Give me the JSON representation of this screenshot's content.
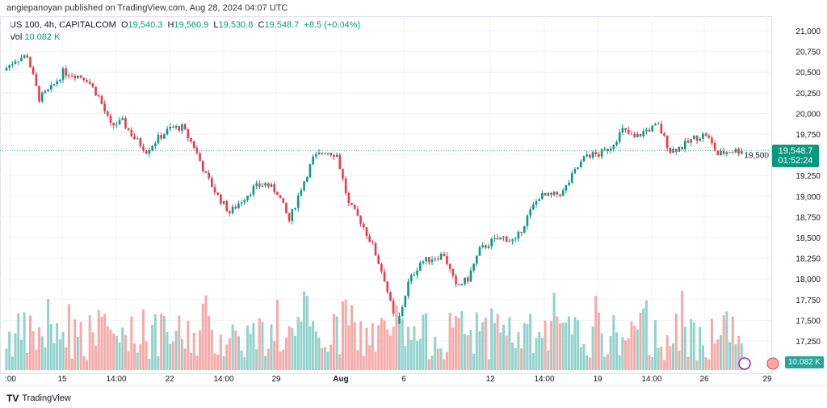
{
  "header": {
    "published": "angiepanoyan published on TradingView.com, Aug 28, 2024 04:07 UTC"
  },
  "legend": {
    "symbol": "US 100, 4h, CAPITALCOM",
    "o_label": "O",
    "o": "19,540.3",
    "h_label": "H",
    "h": "19,560.9",
    "l_label": "L",
    "l": "19,530.8",
    "c_label": "C",
    "c": "19,548.7",
    "change": "+8.5 (+0.04%)",
    "vol_label": "Vol",
    "vol": "10.082 K"
  },
  "price_tag": {
    "price": "19,548.7",
    "countdown": "01:52:24"
  },
  "vol_tag": "10.082 K",
  "brand": "TradingView",
  "colors": {
    "up": "#089981",
    "down": "#f23645",
    "vol_up": "#92d2cc",
    "vol_down": "#f7a9a7"
  },
  "chart_data": {
    "type": "candlestick",
    "title": "US 100, 4h, CAPITALCOM",
    "y_ticks": [
      "21,000",
      "20,750",
      "20,500",
      "20,250",
      "20,000",
      "19,750",
      "19,500",
      "19,250",
      "19,000",
      "18,750",
      "18,500",
      "18,250",
      "18,000",
      "17,750",
      "17,500",
      "17,250"
    ],
    "ylim": [
      17250,
      21000
    ],
    "x_ticks": [
      ":00",
      "15",
      "14:00",
      "22",
      "14:00",
      "29",
      "Aug",
      "6",
      "12",
      "14:00",
      "19",
      "14:00",
      "26",
      "29"
    ],
    "last_price": 19548.7,
    "approx_closes": [
      20520,
      20650,
      20700,
      20180,
      20300,
      20500,
      20470,
      20420,
      20200,
      19850,
      19900,
      19700,
      19550,
      19700,
      19820,
      19830,
      19600,
      19250,
      19000,
      18800,
      18950,
      19100,
      19150,
      19050,
      18700,
      19100,
      19450,
      19550,
      19500,
      18900,
      18700,
      18400,
      18000,
      17400,
      17950,
      18200,
      18250,
      18300,
      17900,
      18000,
      18350,
      18450,
      18500,
      18450,
      18750,
      19000,
      19000,
      19050,
      19300,
      19500,
      19500,
      19600,
      19800,
      19700,
      19800,
      19850,
      19550,
      19600,
      19700,
      19750,
      19500,
      19550,
      19548.7
    ]
  }
}
